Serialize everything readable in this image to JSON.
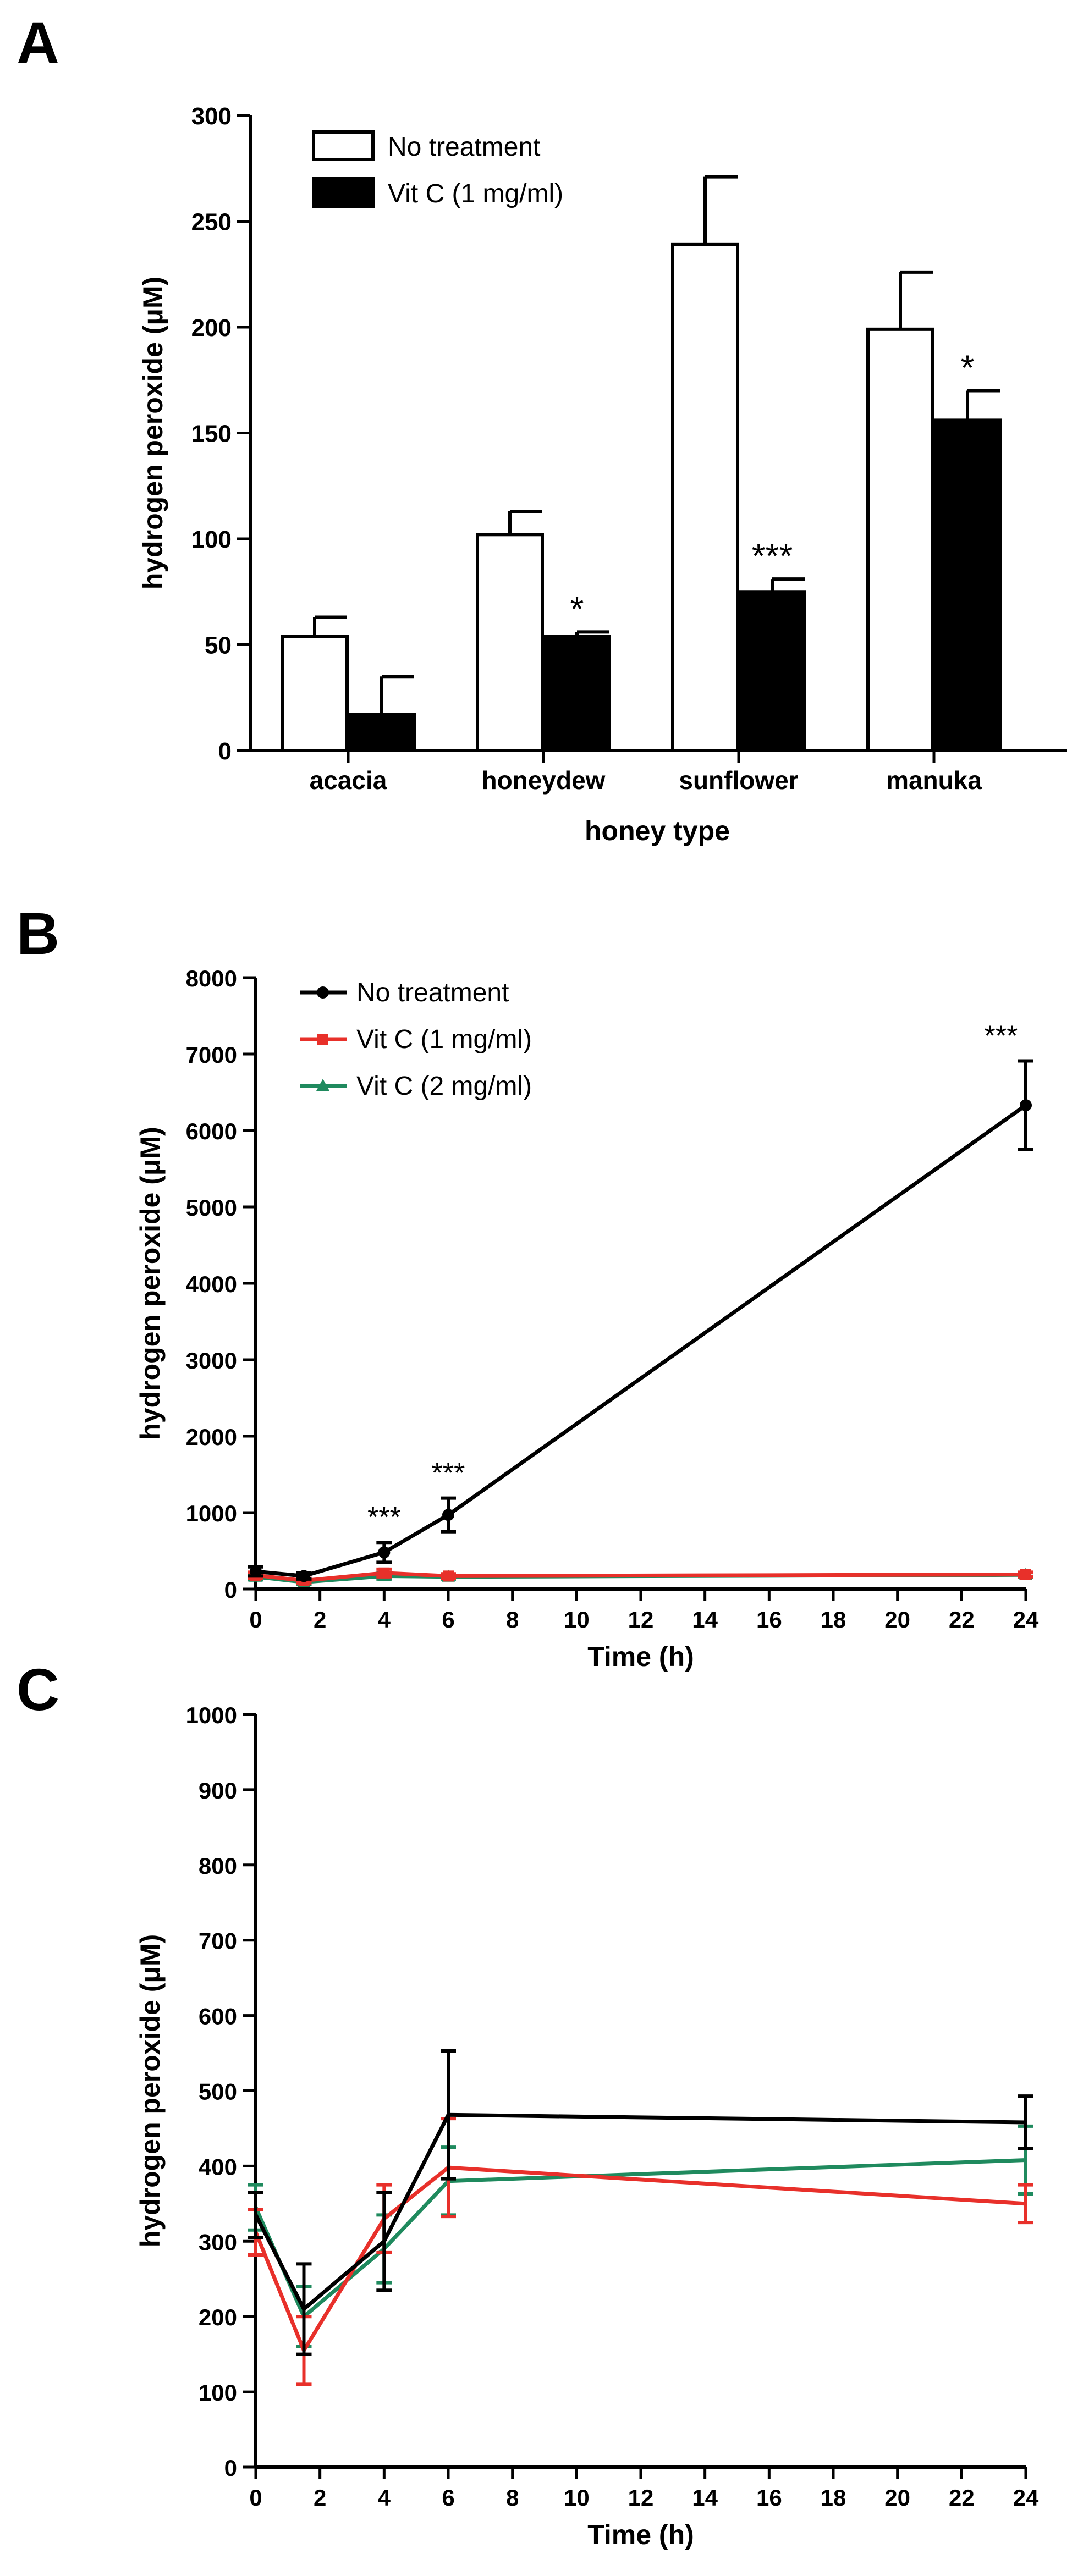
{
  "panel_labels": [
    "A",
    "B",
    "C"
  ],
  "chart_data": [
    {
      "type": "bar",
      "panel": "A",
      "title": "",
      "xlabel": "honey type",
      "ylabel": "hydrogen peroxide (μM)",
      "categories": [
        "acacia",
        "honeydew",
        "sunflower",
        "manuka"
      ],
      "series": [
        {
          "name": "No treatment",
          "fill": "#ffffff",
          "values": [
            54,
            102,
            239,
            199
          ],
          "errors": [
            9,
            11,
            32,
            27
          ]
        },
        {
          "name": "Vit C (1 mg/ml)",
          "fill": "#000000",
          "values": [
            17,
            54,
            75,
            156
          ],
          "errors": [
            18,
            2,
            6,
            14
          ]
        }
      ],
      "significance": [
        {
          "category": "honeydew",
          "series": "Vit C (1 mg/ml)",
          "label": "*"
        },
        {
          "category": "sunflower",
          "series": "Vit C (1 mg/ml)",
          "label": "***"
        },
        {
          "category": "manuka",
          "series": "Vit C (1 mg/ml)",
          "label": "*"
        }
      ],
      "ylim": [
        0,
        300
      ],
      "yticks": [
        0,
        50,
        100,
        150,
        200,
        250,
        300
      ],
      "legend_position": "top-left"
    },
    {
      "type": "line",
      "panel": "B",
      "title": "",
      "xlabel": "Time (h)",
      "ylabel": "hydrogen peroxide (μM)",
      "x": [
        0,
        1.5,
        4,
        6,
        24
      ],
      "series": [
        {
          "name": "No treatment",
          "color": "#000000",
          "marker": "circle",
          "values": [
            230,
            170,
            480,
            970,
            6330
          ],
          "errors": [
            60,
            40,
            130,
            220,
            580
          ]
        },
        {
          "name": "Vit C (1 mg/ml)",
          "color": "#e8302a",
          "marker": "square",
          "values": [
            180,
            110,
            210,
            170,
            190
          ],
          "errors": [
            40,
            30,
            50,
            30,
            30
          ]
        },
        {
          "name": "Vit C (2 mg/ml)",
          "color": "#1f8a5e",
          "marker": "triangle",
          "values": [
            160,
            90,
            170,
            160,
            185
          ],
          "errors": [
            40,
            30,
            40,
            30,
            30
          ]
        }
      ],
      "significance": [
        {
          "x": 4,
          "label": "***"
        },
        {
          "x": 6,
          "label": "***"
        },
        {
          "x": 24,
          "label": "***"
        }
      ],
      "xlim": [
        0,
        24
      ],
      "ylim": [
        0,
        8000
      ],
      "xticks": [
        0,
        2,
        4,
        6,
        8,
        10,
        12,
        14,
        16,
        18,
        20,
        22,
        24
      ],
      "yticks": [
        0,
        1000,
        2000,
        3000,
        4000,
        5000,
        6000,
        7000,
        8000
      ],
      "legend_position": "top-left"
    },
    {
      "type": "line",
      "panel": "C",
      "title": "",
      "xlabel": "Time (h)",
      "ylabel": "hydrogen peroxide (μM)",
      "x": [
        0,
        1.5,
        4,
        6,
        24
      ],
      "series": [
        {
          "name": "No treatment",
          "color": "#000000",
          "values": [
            335,
            210,
            300,
            468,
            458
          ],
          "errors": [
            30,
            60,
            65,
            85,
            35
          ]
        },
        {
          "name": "Vit C (1 mg/ml)",
          "color": "#e8302a",
          "values": [
            312,
            155,
            330,
            398,
            350
          ],
          "errors": [
            30,
            45,
            45,
            65,
            25
          ]
        },
        {
          "name": "Vit C (2 mg/ml)",
          "color": "#1f8a5e",
          "values": [
            345,
            200,
            290,
            380,
            408
          ],
          "errors": [
            30,
            40,
            45,
            45,
            45
          ]
        }
      ],
      "xlim": [
        0,
        24
      ],
      "ylim": [
        0,
        1000
      ],
      "xticks": [
        0,
        2,
        4,
        6,
        8,
        10,
        12,
        14,
        16,
        18,
        20,
        22,
        24
      ],
      "yticks": [
        0,
        100,
        200,
        300,
        400,
        500,
        600,
        700,
        800,
        900,
        1000
      ]
    }
  ]
}
